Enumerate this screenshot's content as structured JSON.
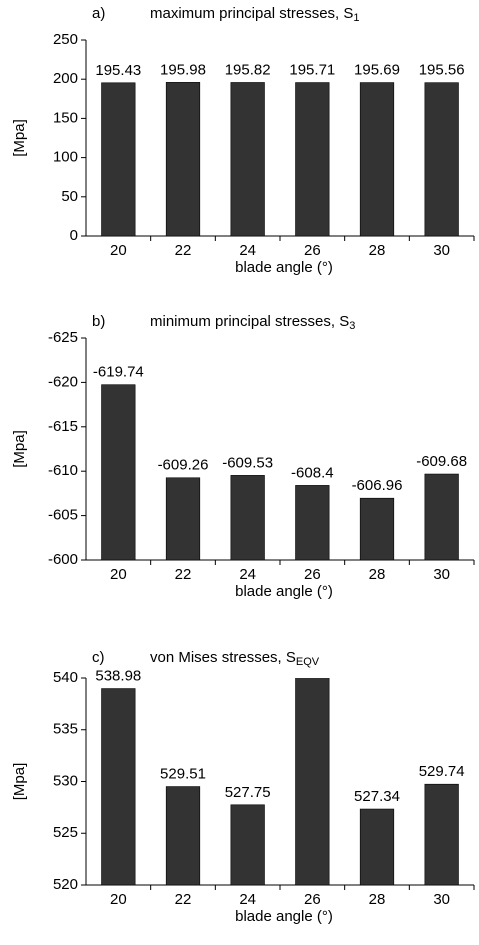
{
  "chart_data": [
    {
      "type": "bar",
      "label": "a)",
      "title": "maximum principal stresses, S",
      "title_subscript": "1",
      "categories": [
        "20",
        "22",
        "24",
        "26",
        "28",
        "30"
      ],
      "values": [
        195.43,
        195.98,
        195.82,
        195.71,
        195.69,
        195.56
      ],
      "color": "#333333",
      "ylabel": "[Mpa]",
      "xlabel": "blade angle (°)",
      "ylim": [
        0,
        250
      ],
      "yticks": [
        0,
        50,
        100,
        150,
        200,
        250
      ],
      "grid": false
    },
    {
      "type": "bar",
      "label": "b)",
      "title": "minimum principal stresses, S",
      "title_subscript": "3",
      "categories": [
        "20",
        "22",
        "24",
        "26",
        "28",
        "30"
      ],
      "values": [
        -619.74,
        -609.26,
        -609.53,
        -608.4,
        -606.96,
        -609.68
      ],
      "color": "#333333",
      "ylabel": "[Mpa]",
      "xlabel": "blade angle (°)",
      "ylim": [
        -600,
        -625
      ],
      "yticks": [
        -600,
        -605,
        -610,
        -615,
        -620,
        -625
      ],
      "grid": false
    },
    {
      "type": "bar",
      "label": "c)",
      "title": "von Mises stresses, S",
      "title_subscript": "EQV",
      "categories": [
        "20",
        "22",
        "24",
        "26",
        "28",
        "30"
      ],
      "values": [
        538.98,
        529.51,
        527.75,
        541,
        527.34,
        529.74
      ],
      "color": "#333333",
      "ylabel": "[Mpa]",
      "xlabel": "blade angle (°)",
      "ylim": [
        520,
        540
      ],
      "yticks": [
        520,
        525,
        530,
        535,
        540
      ],
      "grid": false
    }
  ]
}
